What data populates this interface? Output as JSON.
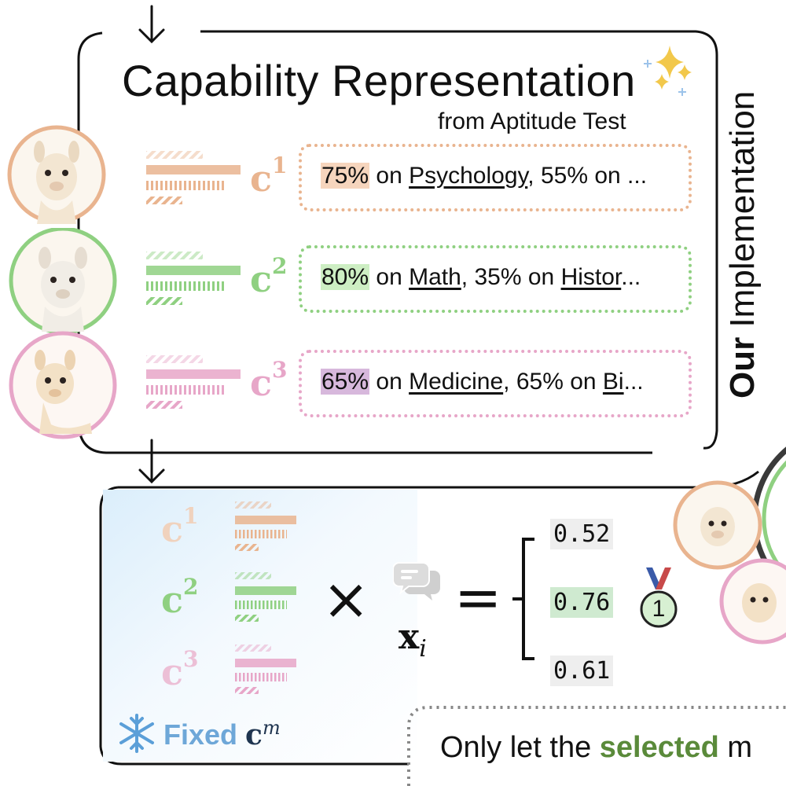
{
  "top_section": {
    "title": "Capability Representation",
    "subtitle": "from Aptitude Test",
    "side_label_bold": "Our",
    "side_label_rest": " Implementation"
  },
  "models": [
    {
      "cap_label": "c",
      "cap_sup": "1",
      "color": "#e9b48f",
      "highlight": "#f6d5bd",
      "score_pct": "75%",
      "text_mid": " on ",
      "subject1": "Psychology",
      "text_after": ", 55% on ",
      "subject2": "",
      "ellipsis": "..."
    },
    {
      "cap_label": "c",
      "cap_sup": "2",
      "color": "#8fd081",
      "highlight": "#cdeec3",
      "score_pct": "80%",
      "text_mid": " on ",
      "subject1": "Math",
      "text_after": ", 35% on ",
      "subject2": "Histor",
      "ellipsis": "..."
    },
    {
      "cap_label": "c",
      "cap_sup": "3",
      "color": "#e7a6c8",
      "highlight": "#d7b8dc",
      "score_pct": "65%",
      "text_mid": " on ",
      "subject1": "Medicine",
      "text_after": ", 65% on ",
      "subject2": "Bi",
      "ellipsis": "..."
    }
  ],
  "bottom_section": {
    "multiply_symbol": "×",
    "equals_symbol": "=",
    "input_label": "x",
    "input_sub": "i",
    "scores": [
      "0.52",
      "0.76",
      "0.61"
    ],
    "winner_rank": "1",
    "fixed_label": "Fixed ",
    "fixed_cm": "c",
    "fixed_cm_sup": "m",
    "only_text_pre": "Only let the ",
    "only_text_bold": "selected",
    "only_text_post": " m"
  },
  "colors": {
    "orange": "#e9b48f",
    "green": "#8fd081",
    "pink": "#e7a6c8",
    "purple": "#b89ec6",
    "score_highlight": "#cfead0",
    "score_plain": "#eeeeee"
  },
  "icons": [
    "sparkle-icon",
    "llama-avatar",
    "chat-bubble-icon",
    "medal-icon",
    "snowflake-icon",
    "down-arrow-icon"
  ]
}
